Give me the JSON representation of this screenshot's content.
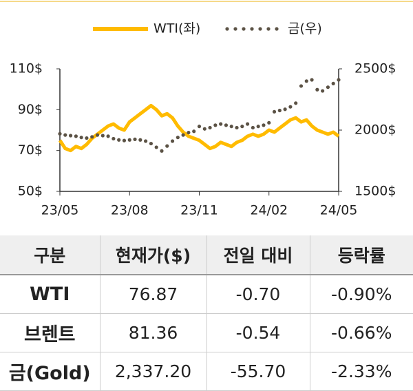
{
  "chart_data": {
    "type": "line",
    "legend": "top",
    "categories": [
      "23/05",
      null,
      null,
      null,
      null,
      null,
      null,
      null,
      null,
      null,
      null,
      null,
      null,
      "23/08",
      null,
      null,
      null,
      null,
      null,
      null,
      null,
      null,
      null,
      null,
      null,
      null,
      "23/11",
      null,
      null,
      null,
      null,
      null,
      null,
      null,
      null,
      null,
      null,
      null,
      null,
      "24/02",
      null,
      null,
      null,
      null,
      null,
      null,
      null,
      null,
      null,
      null,
      null,
      null,
      "24/05"
    ],
    "series": [
      {
        "name": "WTI(좌)",
        "color": "#ffbb00",
        "style": "line",
        "values": [
          75,
          71,
          70,
          72,
          71,
          73,
          76,
          78,
          80,
          82,
          83,
          81,
          80,
          84,
          86,
          88,
          90,
          92,
          90,
          87,
          88,
          86,
          82,
          79,
          77,
          76,
          75,
          73,
          71,
          72,
          74,
          73,
          72,
          74,
          75,
          77,
          78,
          77,
          78,
          80,
          79,
          81,
          83,
          85,
          86,
          84,
          85,
          82,
          80,
          79,
          78,
          79,
          77
        ]
      },
      {
        "name": "금(우)",
        "color": "#5b5245",
        "style": "dots",
        "axis": "y2",
        "values": [
          1970,
          1960,
          1955,
          1950,
          1940,
          1935,
          1945,
          1960,
          1955,
          1950,
          1930,
          1920,
          1915,
          1920,
          1925,
          1920,
          1910,
          1890,
          1860,
          1830,
          1870,
          1910,
          1940,
          1960,
          1980,
          1990,
          2030,
          2010,
          2020,
          2040,
          2050,
          2040,
          2030,
          2020,
          2030,
          2050,
          2020,
          2030,
          2040,
          2060,
          2150,
          2160,
          2170,
          2190,
          2220,
          2360,
          2400,
          2410,
          2330,
          2320,
          2350,
          2380,
          2410
        ]
      }
    ],
    "ylim": [
      50,
      110
    ],
    "yticks": [
      {
        "value": 50,
        "label": "50$"
      },
      {
        "value": 70,
        "label": "70$"
      },
      {
        "value": 90,
        "label": "90$"
      },
      {
        "value": 110,
        "label": "110$"
      }
    ],
    "y2lim": [
      1500,
      2500
    ],
    "y2ticks": [
      {
        "value": 1500,
        "label": "1500$"
      },
      {
        "value": 2000,
        "label": "2000$"
      },
      {
        "value": 2500,
        "label": "2500$"
      }
    ]
  },
  "table": {
    "header": [
      "구분",
      "현재가($)",
      "전일 대비",
      "등락률"
    ],
    "rows": [
      [
        "WTI",
        "76.87",
        "-0.70",
        "-0.90%"
      ],
      [
        "브렌트",
        "81.36",
        "-0.54",
        "-0.66%"
      ],
      [
        "금(Gold)",
        "2,337.20",
        "-55.70",
        "-2.33%"
      ]
    ]
  }
}
